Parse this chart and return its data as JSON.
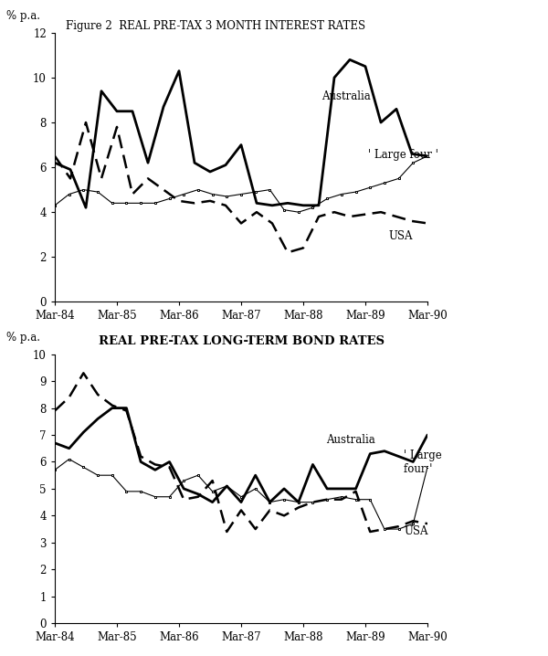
{
  "top_chart": {
    "title": "Figure 2  REAL PRE-TAX 3 MONTH INTEREST RATES",
    "ylabel": "% p.a.",
    "ylim": [
      0,
      12
    ],
    "yticks": [
      0,
      2,
      4,
      6,
      8,
      10,
      12
    ],
    "x_labels": [
      "Mar-84",
      "Mar-85",
      "Mar-86",
      "Mar-87",
      "Mar-88",
      "Mar-89",
      "Mar-90"
    ],
    "x_positions": [
      0,
      4,
      8,
      12,
      16,
      20,
      24
    ],
    "australia": [
      6.2,
      5.9,
      4.2,
      9.4,
      8.5,
      8.5,
      6.2,
      8.7,
      10.3,
      6.2,
      5.8,
      6.1,
      7.0,
      4.4,
      4.3,
      4.4,
      4.3,
      4.3,
      10.0,
      10.8,
      10.5,
      8.0,
      8.6,
      6.6,
      6.5
    ],
    "large_four": [
      4.3,
      4.8,
      5.0,
      4.9,
      4.4,
      4.4,
      4.4,
      4.4,
      4.6,
      4.8,
      5.0,
      4.8,
      4.7,
      4.8,
      4.9,
      5.0,
      4.1,
      4.0,
      4.2,
      4.6,
      4.8,
      4.9,
      5.1,
      5.3,
      5.5,
      6.2,
      6.5
    ],
    "usa": [
      6.5,
      5.5,
      8.0,
      5.5,
      7.8,
      4.8,
      5.5,
      5.0,
      4.5,
      4.4,
      4.5,
      4.3,
      3.5,
      4.0,
      3.5,
      2.2,
      2.4,
      3.8,
      4.0,
      3.8,
      3.9,
      4.0,
      3.8,
      3.6,
      3.5
    ]
  },
  "bottom_chart": {
    "title": "REAL PRE-TAX LONG-TERM BOND RATES",
    "ylabel": "% p.a.",
    "ylim": [
      0,
      10
    ],
    "yticks": [
      0,
      1,
      2,
      3,
      4,
      5,
      6,
      7,
      8,
      9,
      10
    ],
    "x_labels": [
      "Mar-84",
      "Mar-85",
      "Mar-86",
      "Mar-87",
      "Mar-88",
      "Mar-89",
      "Mar-90"
    ],
    "x_positions": [
      0,
      4,
      8,
      12,
      16,
      20,
      24
    ],
    "australia": [
      6.7,
      6.5,
      7.1,
      7.6,
      8.0,
      8.0,
      6.0,
      5.7,
      6.0,
      5.0,
      4.8,
      4.5,
      5.1,
      4.5,
      5.5,
      4.5,
      5.0,
      4.5,
      5.9,
      5.0,
      5.0,
      5.0,
      6.3,
      6.4,
      6.2,
      6.0,
      7.0
    ],
    "large_four": [
      5.7,
      6.1,
      5.8,
      5.5,
      5.5,
      4.9,
      4.9,
      4.7,
      4.7,
      5.3,
      5.5,
      4.9,
      5.1,
      4.7,
      5.0,
      4.5,
      4.6,
      4.5,
      4.5,
      4.6,
      4.7,
      4.6,
      4.6,
      3.5,
      3.5,
      3.7,
      5.8
    ],
    "usa": [
      7.9,
      8.4,
      9.3,
      8.5,
      8.1,
      7.9,
      6.2,
      5.9,
      5.8,
      4.6,
      4.7,
      5.3,
      3.4,
      4.2,
      3.5,
      4.2,
      4.0,
      4.3,
      4.5,
      4.6,
      4.6,
      4.9,
      3.4,
      3.5,
      3.6,
      3.8,
      3.7
    ]
  }
}
